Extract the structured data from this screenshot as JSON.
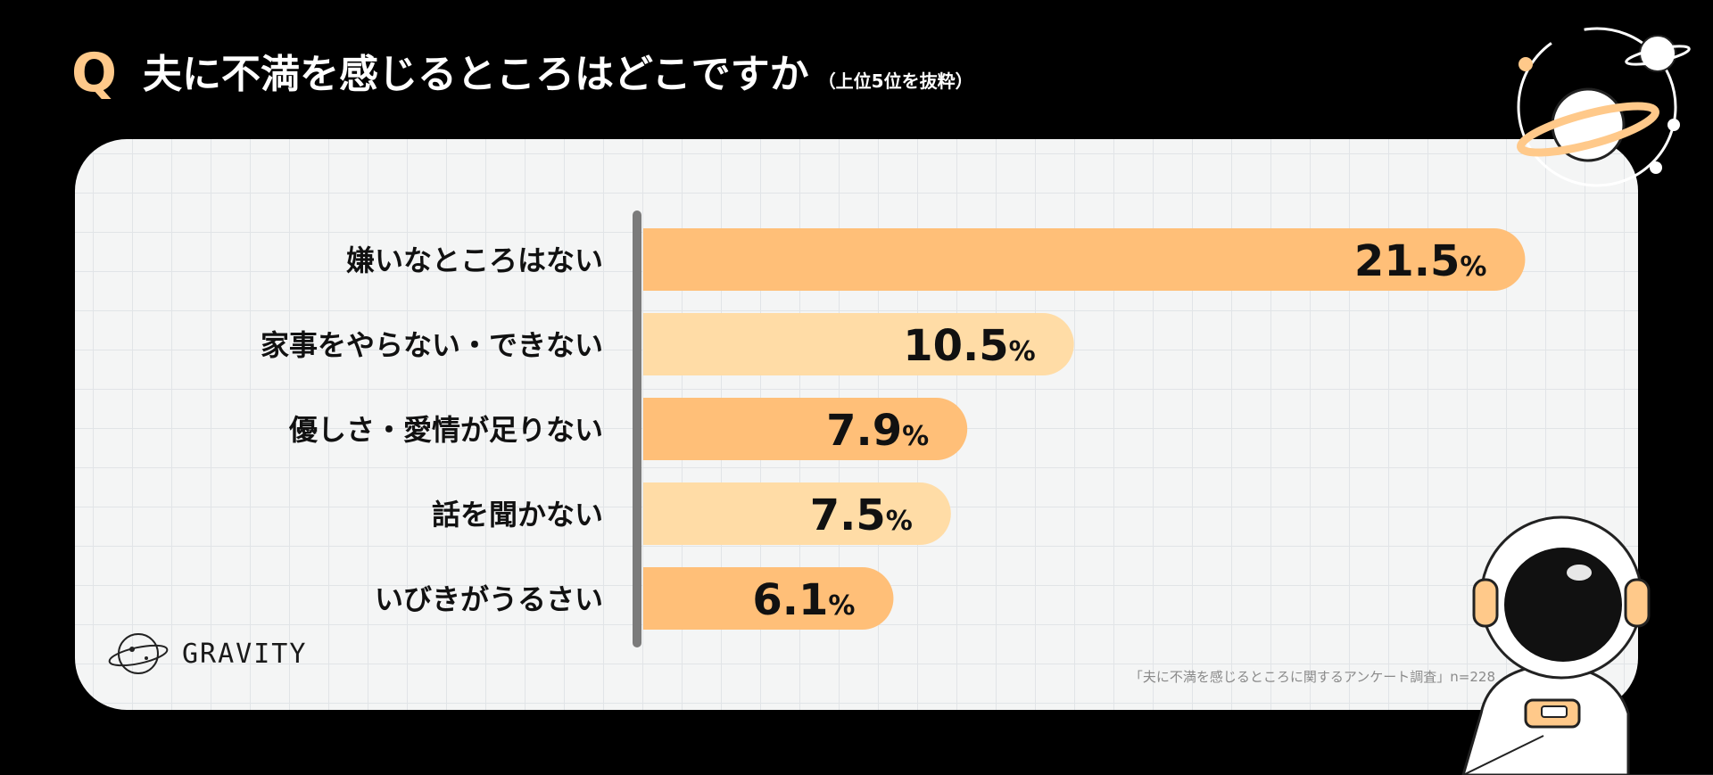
{
  "header": {
    "q_mark": "Q",
    "title": "夫に不満を感じるところはどこですか",
    "subtitle": "（上位5位を抜粋）"
  },
  "chart_data": {
    "type": "bar",
    "orientation": "horizontal",
    "title": "夫に不満を感じるところはどこですか（上位5位を抜粋）",
    "categories": [
      "嫌いなところはない",
      "家事をやらない・できない",
      "優しさ・愛情が足りない",
      "話を聞かない",
      "いびきがうるさい"
    ],
    "values": [
      21.5,
      10.5,
      7.9,
      7.5,
      6.1
    ],
    "value_labels": [
      "21.5",
      "10.5",
      "7.9",
      "7.5",
      "6.1"
    ],
    "unit": "%",
    "xlim": [
      0,
      22.6
    ],
    "colors": [
      "#ffbf78",
      "#ffdca6"
    ]
  },
  "brand": {
    "name": "GRAVITY"
  },
  "source": "「夫に不満を感じるところに関するアンケート調査」n=228"
}
